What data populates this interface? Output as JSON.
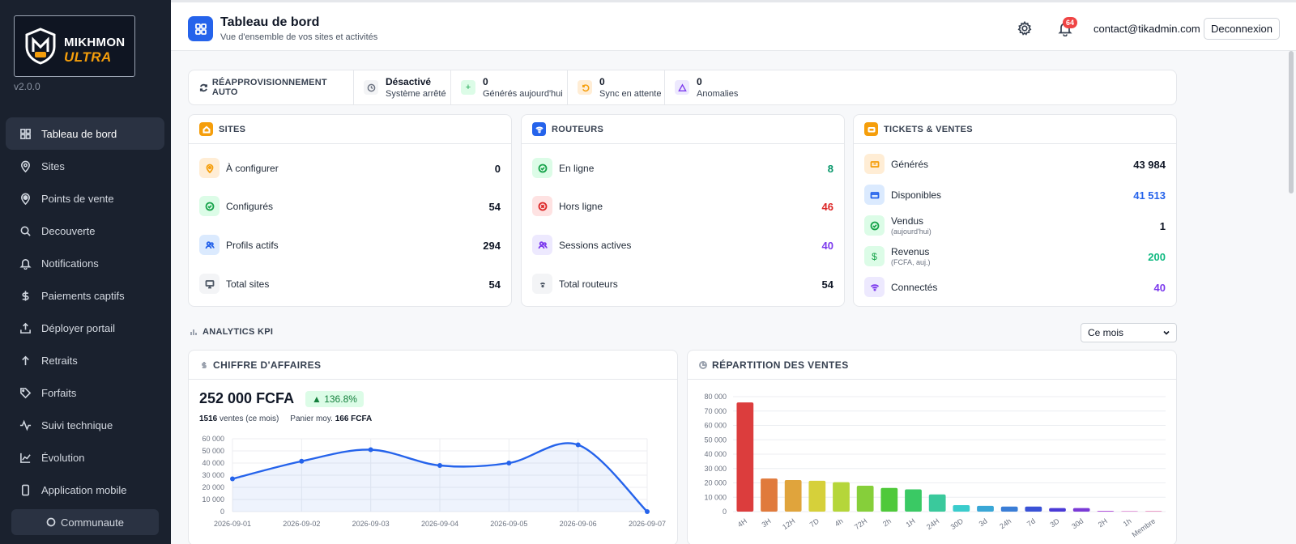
{
  "sidebar": {
    "logo_line1": "MIKHMON",
    "logo_line2": "ULTRA",
    "version": "v2.0.0",
    "items": [
      {
        "label": "Tableau de bord",
        "icon": "grid-icon"
      },
      {
        "label": "Sites",
        "icon": "map-pin-icon"
      },
      {
        "label": "Points de vente",
        "icon": "location-icon"
      },
      {
        "label": "Decouverte",
        "icon": "search-icon"
      },
      {
        "label": "Notifications",
        "icon": "bell-icon"
      },
      {
        "label": "Paiements captifs",
        "icon": "dollar-icon"
      },
      {
        "label": "Déployer portail",
        "icon": "upload-icon"
      },
      {
        "label": "Retraits",
        "icon": "arrow-up-icon"
      },
      {
        "label": "Forfaits",
        "icon": "tag-icon"
      },
      {
        "label": "Suivi technique",
        "icon": "activity-icon"
      },
      {
        "label": "Évolution",
        "icon": "chart-line-icon"
      },
      {
        "label": "Application mobile",
        "icon": "phone-icon"
      }
    ],
    "community": "Communaute"
  },
  "header": {
    "title": "Tableau de bord",
    "subtitle": "Vue d'ensemble de vos sites et activités",
    "notifications_count": "64",
    "email": "contact@tikadmin.com",
    "logout": "Deconnexion"
  },
  "status": {
    "label": "RÉAPPROVISIONNEMENT AUTO",
    "cells": [
      {
        "value": "Désactivé",
        "label": "Système arrêté"
      },
      {
        "value": "0",
        "label": "Générés aujourd'hui"
      },
      {
        "value": "0",
        "label": "Sync en attente"
      },
      {
        "value": "0",
        "label": "Anomalies"
      }
    ]
  },
  "sites": {
    "title": "SITES",
    "rows": [
      {
        "label": "À configurer",
        "value": "0"
      },
      {
        "label": "Configurés",
        "value": "54"
      },
      {
        "label": "Profils actifs",
        "value": "294"
      },
      {
        "label": "Total sites",
        "value": "54"
      }
    ]
  },
  "routeurs": {
    "title": "ROUTEURS",
    "rows": [
      {
        "label": "En ligne",
        "value": "8"
      },
      {
        "label": "Hors ligne",
        "value": "46"
      },
      {
        "label": "Sessions actives",
        "value": "40"
      },
      {
        "label": "Total routeurs",
        "value": "54"
      }
    ]
  },
  "tickets": {
    "title": "TICKETS & VENTES",
    "rows": [
      {
        "label": "Générés",
        "sub": "",
        "value": "43 984"
      },
      {
        "label": "Disponibles",
        "sub": "",
        "value": "41 513"
      },
      {
        "label": "Vendus",
        "sub": "(aujourd'hui)",
        "value": "1"
      },
      {
        "label": "Revenus",
        "sub": "(FCFA, auj.)",
        "value": "200"
      },
      {
        "label": "Connectés",
        "sub": "",
        "value": "40"
      }
    ]
  },
  "analytics": {
    "title": "ANALYTICS KPI",
    "period": "Ce mois"
  },
  "revenue": {
    "title": "CHIFFRE D'AFFAIRES",
    "amount": "252 000 FCFA",
    "growth": "▲ 136.8%",
    "sales_count": "1516",
    "sales_label": "ventes (ce mois)",
    "basket_label": "Panier moy.",
    "basket_value": "166 FCFA"
  },
  "distribution": {
    "title": "RÉPARTITION DES VENTES"
  },
  "chart_data": [
    {
      "type": "line",
      "title": "CHIFFRE D'AFFAIRES",
      "x": [
        "2026-09-01",
        "2026-09-02",
        "2026-09-03",
        "2026-09-04",
        "2026-09-05",
        "2026-09-06",
        "2026-09-07"
      ],
      "values": [
        27000,
        41500,
        51000,
        38000,
        40000,
        55000,
        0
      ],
      "yticks": [
        "60 000",
        "50 000",
        "40 000",
        "30 000",
        "20 000",
        "10 000",
        "0"
      ],
      "ylim": [
        0,
        60000
      ],
      "grid": true,
      "color": "#2563eb"
    },
    {
      "type": "bar",
      "title": "RÉPARTITION DES VENTES",
      "categories": [
        "4H",
        "3H",
        "12H",
        "7D",
        "4h",
        "72H",
        "2h",
        "1H",
        "24H",
        "30D",
        "3d",
        "24h",
        "7d",
        "3D",
        "30d",
        "2H",
        "1h",
        "Membre"
      ],
      "values": [
        76000,
        23000,
        22000,
        21500,
        20500,
        18000,
        16500,
        15500,
        12000,
        4500,
        4000,
        3500,
        3500,
        2500,
        2500,
        500,
        300,
        0
      ],
      "colors": [
        "#dc3d3d",
        "#e07a3c",
        "#e0a43c",
        "#d6d03a",
        "#b5d63a",
        "#86cf3a",
        "#4fc93a",
        "#3ac964",
        "#3ac99c",
        "#3acccc",
        "#3aa7d6",
        "#3a7dd6",
        "#3a52d6",
        "#4a3ad6",
        "#7a3ad6",
        "#a83ad6",
        "#c93ab5",
        "#d63a8c"
      ],
      "yticks": [
        "80 000",
        "70 000",
        "60 000",
        "50 000",
        "40 000",
        "30 000",
        "20 000",
        "10 000",
        "0"
      ],
      "ylim": [
        0,
        80000
      ],
      "grid": true
    }
  ]
}
